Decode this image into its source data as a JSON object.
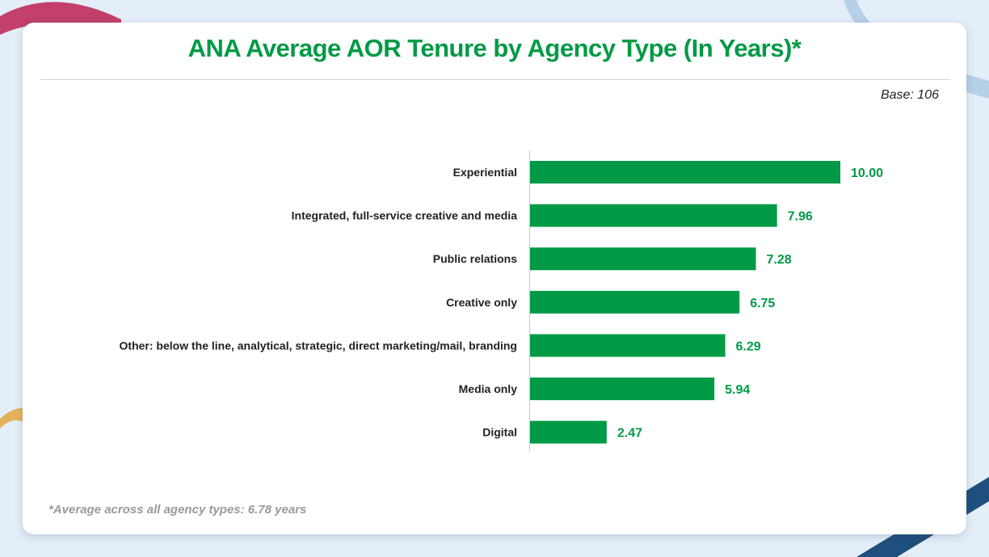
{
  "colors": {
    "accent": "#009a46",
    "bar": "#009a46",
    "background": "#e4eef8",
    "card": "#ffffff"
  },
  "header": {
    "title": "ANA Average AOR Tenure by Agency Type (In Years)*",
    "base": "Base: 106"
  },
  "footnote": "*Average across all agency types: 6.78 years",
  "chart_data": {
    "type": "bar",
    "orientation": "horizontal",
    "title": "ANA Average AOR Tenure by Agency Type (In Years)*",
    "xlabel": "",
    "ylabel": "",
    "xlim": [
      0,
      10
    ],
    "grid": false,
    "categories": [
      "Experiential",
      "Integrated, full-service creative and media",
      "Public relations",
      "Creative only",
      "Other: below the line, analytical, strategic, direct marketing/mail, branding",
      "Media only",
      "Digital"
    ],
    "values": [
      10.0,
      7.96,
      7.28,
      6.75,
      6.29,
      5.94,
      2.47
    ],
    "value_labels": [
      "10.00",
      "7.96",
      "7.28",
      "6.75",
      "6.29",
      "5.94",
      "2.47"
    ]
  }
}
